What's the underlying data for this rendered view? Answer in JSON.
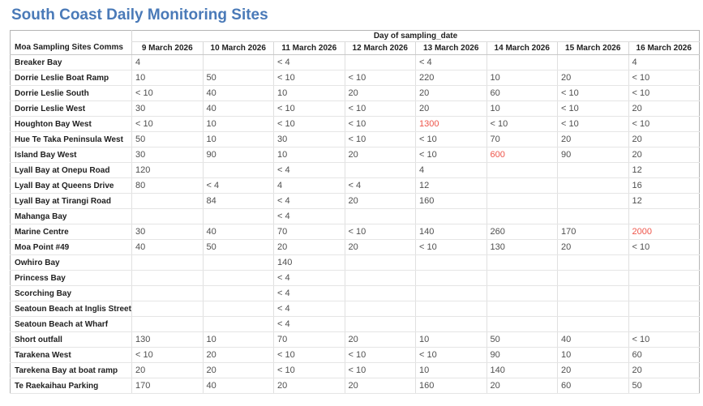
{
  "title": "South Coast Daily Monitoring Sites",
  "colors": {
    "title_blue": "#4a7ab8",
    "alert_red": "#ee5449"
  },
  "chart_data": {
    "type": "table",
    "title": "South Coast Daily Monitoring Sites",
    "corner_header": "Moa Sampling Sites Comms",
    "column_group_label": "Day of sampling_date",
    "columns": [
      "9 March 2026",
      "10 March 2026",
      "11 March 2026",
      "12 March 2026",
      "13 March 2026",
      "14 March 2026",
      "15 March 2026",
      "16 March 2026"
    ],
    "rows": [
      {
        "site": "Breaker Bay",
        "values": [
          "4",
          "",
          "< 4",
          "",
          "< 4",
          "",
          "",
          "4"
        ],
        "alerts": []
      },
      {
        "site": "Dorrie Leslie Boat Ramp",
        "values": [
          "10",
          "50",
          "< 10",
          "< 10",
          "220",
          "10",
          "20",
          "< 10"
        ],
        "alerts": []
      },
      {
        "site": "Dorrie Leslie South",
        "values": [
          "< 10",
          "40",
          "10",
          "20",
          "20",
          "60",
          "< 10",
          "< 10"
        ],
        "alerts": []
      },
      {
        "site": "Dorrie Leslie West",
        "values": [
          "30",
          "40",
          "< 10",
          "< 10",
          "20",
          "10",
          "< 10",
          "20"
        ],
        "alerts": []
      },
      {
        "site": "Houghton Bay West",
        "values": [
          "< 10",
          "10",
          "< 10",
          "< 10",
          "1300",
          "< 10",
          "< 10",
          "< 10"
        ],
        "alerts": [
          4
        ]
      },
      {
        "site": "Hue Te Taka Peninsula West",
        "values": [
          "50",
          "10",
          "30",
          "< 10",
          "< 10",
          "70",
          "20",
          "20"
        ],
        "alerts": []
      },
      {
        "site": "Island Bay West",
        "values": [
          "30",
          "90",
          "10",
          "20",
          "< 10",
          "600",
          "90",
          "20"
        ],
        "alerts": [
          5
        ]
      },
      {
        "site": "Lyall Bay at Onepu Road",
        "values": [
          "120",
          "",
          "< 4",
          "",
          "4",
          "",
          "",
          "12"
        ],
        "alerts": []
      },
      {
        "site": "Lyall Bay at Queens Drive",
        "values": [
          "80",
          "< 4",
          "4",
          "< 4",
          "12",
          "",
          "",
          "16"
        ],
        "alerts": []
      },
      {
        "site": "Lyall Bay at Tirangi Road",
        "values": [
          "",
          "84",
          "< 4",
          "20",
          "160",
          "",
          "",
          "12"
        ],
        "alerts": []
      },
      {
        "site": "Mahanga Bay",
        "values": [
          "",
          "",
          "< 4",
          "",
          "",
          "",
          "",
          ""
        ],
        "alerts": []
      },
      {
        "site": "Marine Centre",
        "values": [
          "30",
          "40",
          "70",
          "< 10",
          "140",
          "260",
          "170",
          "2000"
        ],
        "alerts": [
          7
        ]
      },
      {
        "site": "Moa Point #49",
        "values": [
          "40",
          "50",
          "20",
          "20",
          "< 10",
          "130",
          "20",
          "< 10"
        ],
        "alerts": []
      },
      {
        "site": "Owhiro Bay",
        "values": [
          "",
          "",
          "140",
          "",
          "",
          "",
          "",
          ""
        ],
        "alerts": []
      },
      {
        "site": "Princess Bay",
        "values": [
          "",
          "",
          "< 4",
          "",
          "",
          "",
          "",
          ""
        ],
        "alerts": []
      },
      {
        "site": "Scorching Bay",
        "values": [
          "",
          "",
          "< 4",
          "",
          "",
          "",
          "",
          ""
        ],
        "alerts": []
      },
      {
        "site": "Seatoun Beach at Inglis Street",
        "values": [
          "",
          "",
          "< 4",
          "",
          "",
          "",
          "",
          ""
        ],
        "alerts": []
      },
      {
        "site": "Seatoun Beach at Wharf",
        "values": [
          "",
          "",
          "< 4",
          "",
          "",
          "",
          "",
          ""
        ],
        "alerts": []
      },
      {
        "site": "Short outfall",
        "values": [
          "130",
          "10",
          "70",
          "20",
          "10",
          "50",
          "40",
          "< 10"
        ],
        "alerts": []
      },
      {
        "site": "Tarakena West",
        "values": [
          "< 10",
          "20",
          "< 10",
          "< 10",
          "< 10",
          "90",
          "10",
          "60"
        ],
        "alerts": []
      },
      {
        "site": "Tarekena Bay at boat ramp",
        "values": [
          "20",
          "20",
          "< 10",
          "< 10",
          "10",
          "140",
          "20",
          "20"
        ],
        "alerts": []
      },
      {
        "site": "Te Raekaihau Parking",
        "values": [
          "170",
          "40",
          "20",
          "20",
          "160",
          "20",
          "60",
          "50"
        ],
        "alerts": []
      }
    ]
  }
}
